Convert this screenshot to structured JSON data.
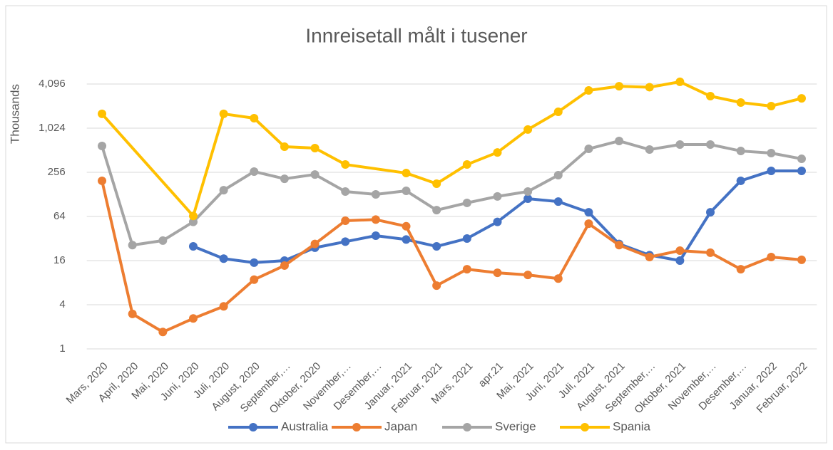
{
  "chart_data": {
    "type": "line",
    "title": "Innreisetall målt i tusener",
    "y_label": "Thousands",
    "categories": [
      "Mars, 2020",
      "April, 2020",
      "Mai, 2020",
      "Juni, 2020",
      "Juli, 2020",
      "August, 2020",
      "September,…",
      "Oktober, 2020",
      "November,…",
      "Desember,…",
      "Januar, 2021",
      "Februar, 2021",
      "Mars, 2021",
      "apr.21",
      "Mai, 2021",
      "Juni, 2021",
      "Juli, 2021",
      "August, 2021",
      "September,…",
      "Oktober, 2021",
      "November,…",
      "Desember,…",
      "Januar, 2022",
      "Februar, 2022"
    ],
    "series": [
      {
        "name": "Australia",
        "color": "#4472c4",
        "values": [
          null,
          null,
          null,
          25,
          17,
          15,
          16,
          24,
          29,
          35,
          31,
          25,
          32,
          54,
          112,
          102,
          73,
          27,
          19,
          16,
          73,
          196,
          268,
          268
        ]
      },
      {
        "name": "Japan",
        "color": "#ed7d31",
        "values": [
          196,
          3.0,
          1.7,
          2.6,
          3.8,
          8.8,
          13.7,
          27,
          56,
          58,
          47,
          7.3,
          12.2,
          10.9,
          10.2,
          9.1,
          51,
          26,
          17.9,
          21.9,
          20.5,
          12.2,
          17.9,
          16.4
        ]
      },
      {
        "name": "Sverige",
        "color": "#a5a5a5",
        "values": [
          585,
          26,
          30,
          54,
          146,
          262,
          209,
          239,
          140,
          128,
          143,
          78,
          98,
          120,
          140,
          234,
          535,
          685,
          523,
          612,
          612,
          500,
          468,
          391
        ]
      },
      {
        "name": "Spania",
        "color": "#ffc000",
        "values": [
          1604,
          null,
          null,
          65,
          1604,
          1400,
          572,
          548,
          327,
          null,
          250,
          179,
          327,
          478,
          981,
          1713,
          3350,
          3820,
          3700,
          4390,
          2800,
          2290,
          2050,
          2610
        ]
      }
    ],
    "ylim": [
      1,
      8192
    ],
    "yticks": [
      1,
      4,
      16,
      64,
      256,
      {
        "value": 1024,
        "label": "1,024"
      },
      {
        "value": 4096,
        "label": "4,096"
      }
    ],
    "log_scale": true,
    "log_base": 2,
    "grid": true,
    "connect_gaps": true,
    "legend": "bottom"
  }
}
